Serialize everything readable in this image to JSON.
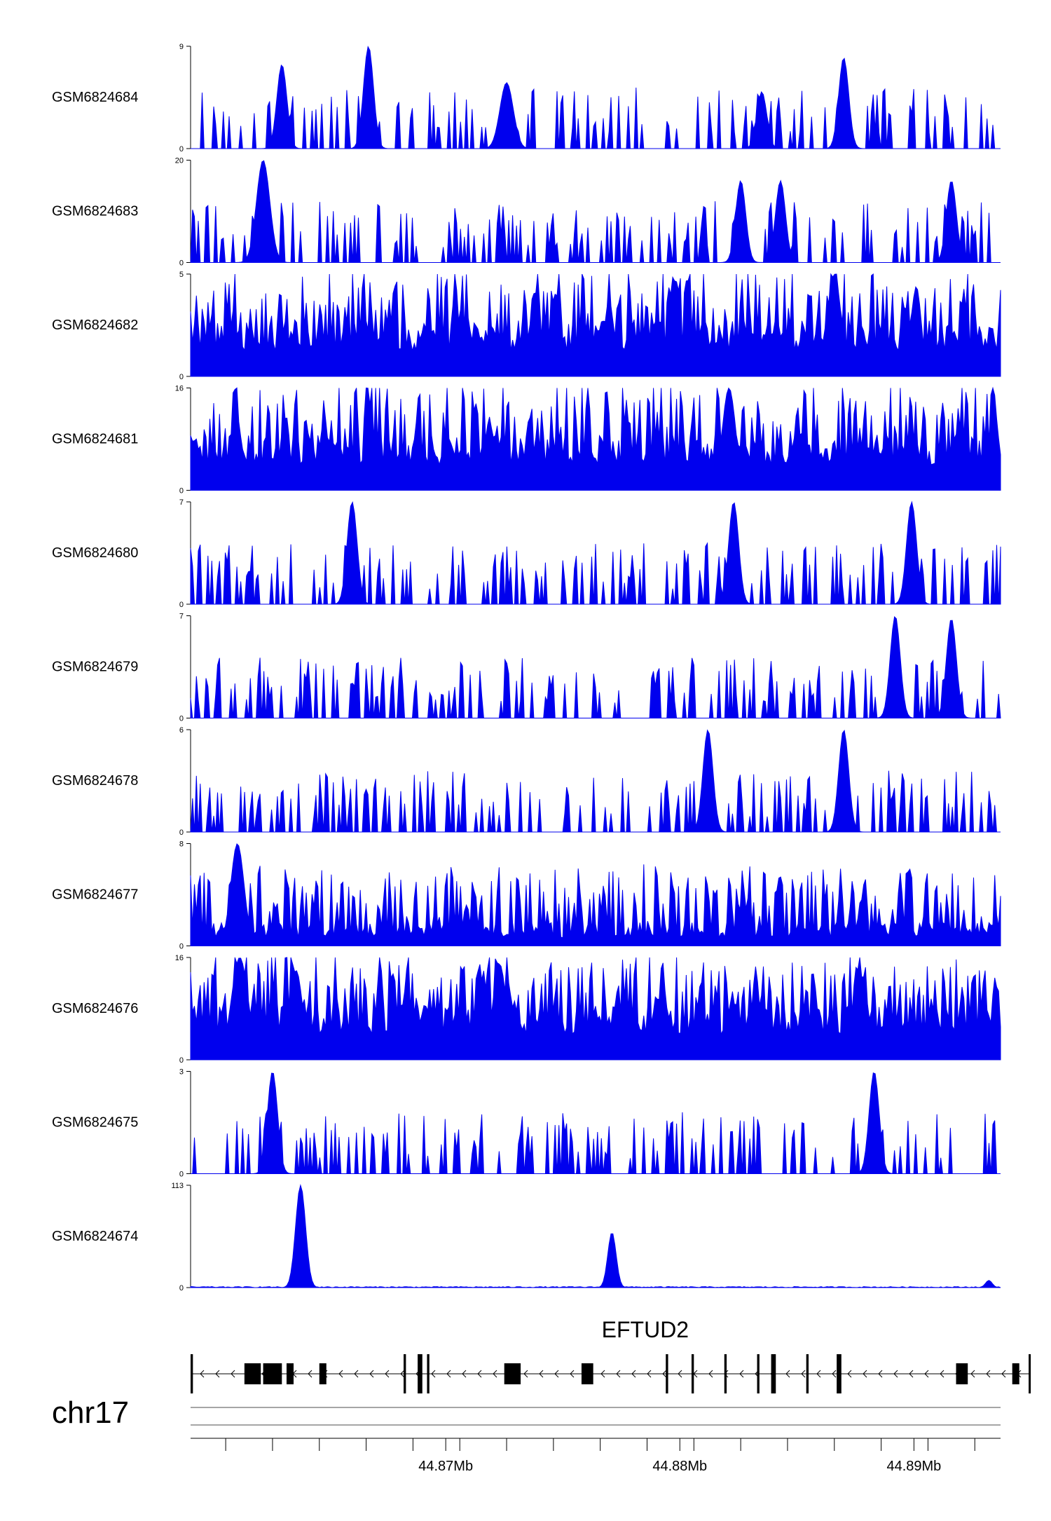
{
  "chart_data": {
    "type": "area",
    "chromosome": "chr17",
    "gene": {
      "name": "EFTUD2",
      "strand": "-",
      "exons": [
        [
          44.8591,
          44.8592
        ],
        [
          44.8614,
          44.8621
        ],
        [
          44.8622,
          44.863
        ],
        [
          44.8632,
          44.8635
        ],
        [
          44.8646,
          44.8649
        ],
        [
          44.8682,
          44.8683
        ],
        [
          44.8688,
          44.869
        ],
        [
          44.8692,
          44.8693
        ],
        [
          44.8725,
          44.8732
        ],
        [
          44.8758,
          44.8763
        ],
        [
          44.8794,
          44.8795
        ],
        [
          44.8805,
          44.8806
        ],
        [
          44.8819,
          44.882
        ],
        [
          44.8833,
          44.8834
        ],
        [
          44.8839,
          44.8841
        ],
        [
          44.8854,
          44.8855
        ],
        [
          44.8867,
          44.8869
        ],
        [
          44.8918,
          44.8923
        ],
        [
          44.8942,
          44.8945
        ],
        [
          44.8949,
          44.89495
        ]
      ]
    },
    "xlim": [
      44.8591,
      44.8937
    ],
    "x_ticks": [
      44.87,
      44.88,
      44.89
    ],
    "x_tick_labels": [
      "44.87Mb",
      "44.88Mb",
      "44.89Mb"
    ],
    "x_minor_ticks": [
      44.8606,
      44.8626,
      44.8646,
      44.8666,
      44.8686,
      44.8706,
      44.8726,
      44.8746,
      44.8766,
      44.8786,
      44.8806,
      44.8826,
      44.8846,
      44.8866,
      44.8886,
      44.8906,
      44.8926
    ],
    "tracks": [
      {
        "name": "GSM6824684",
        "ylim": [
          0,
          9
        ],
        "ymax_label": "9",
        "ymin_label": "0",
        "peaks": [
          [
            44.8667,
            9.0,
            0.0003
          ],
          [
            44.863,
            7.4,
            0.0003
          ],
          [
            44.8726,
            5.8,
            0.0004
          ],
          [
            44.887,
            8.0,
            0.0003
          ],
          [
            44.8835,
            5.0,
            0.0003
          ]
        ],
        "profile": "sparse"
      },
      {
        "name": "GSM6824683",
        "ylim": [
          0,
          20
        ],
        "ymax_label": "20",
        "ymin_label": "0",
        "peaks": [
          [
            44.8622,
            20.0,
            0.0004
          ],
          [
            44.8826,
            16.0,
            0.0003
          ],
          [
            44.8843,
            16.0,
            0.0003
          ],
          [
            44.8916,
            16.0,
            0.0003
          ]
        ],
        "profile": "sparse"
      },
      {
        "name": "GSM6824682",
        "ylim": [
          0,
          5
        ],
        "ymax_label": "5",
        "ymin_label": "0",
        "peaks": [
          [
            44.8866,
            5.0,
            0.0004
          ],
          [
            44.8901,
            4.4,
            0.0003
          ]
        ],
        "profile": "dense"
      },
      {
        "name": "GSM6824681",
        "ylim": [
          0,
          16
        ],
        "ymax_label": "16",
        "ymin_label": "0",
        "peaks": [
          [
            44.8821,
            16.0,
            0.0004
          ]
        ],
        "profile": "dense"
      },
      {
        "name": "GSM6824680",
        "ylim": [
          0,
          7
        ],
        "ymax_label": "7",
        "ymin_label": "0",
        "peaks": [
          [
            44.866,
            7.0,
            0.0003
          ],
          [
            44.8823,
            7.0,
            0.0003
          ],
          [
            44.8899,
            7.0,
            0.0003
          ]
        ],
        "profile": "sparse"
      },
      {
        "name": "GSM6824679",
        "ylim": [
          0,
          7
        ],
        "ymax_label": "7",
        "ymin_label": "0",
        "peaks": [
          [
            44.8892,
            7.0,
            0.0003
          ],
          [
            44.8916,
            6.8,
            0.0003
          ]
        ],
        "profile": "sparse"
      },
      {
        "name": "GSM6824678",
        "ylim": [
          0,
          6
        ],
        "ymax_label": "6",
        "ymin_label": "0",
        "peaks": [
          [
            44.8812,
            6.0,
            0.0003
          ],
          [
            44.887,
            6.0,
            0.0003
          ]
        ],
        "profile": "sparse"
      },
      {
        "name": "GSM6824677",
        "ylim": [
          0,
          8
        ],
        "ymax_label": "8",
        "ymin_label": "0",
        "peaks": [
          [
            44.8611,
            8.0,
            0.0004
          ]
        ],
        "profile": "medium"
      },
      {
        "name": "GSM6824676",
        "ylim": [
          0,
          16
        ],
        "ymax_label": "16",
        "ymin_label": "0",
        "peaks": [
          [
            44.8612,
            16.0,
            0.0005
          ],
          [
            44.8636,
            14.0,
            0.0004
          ],
          [
            44.8723,
            15.0,
            0.0004
          ]
        ],
        "profile": "dense"
      },
      {
        "name": "GSM6824675",
        "ylim": [
          0,
          3
        ],
        "ymax_label": "3",
        "ymin_label": "0",
        "peaks": [
          [
            44.8626,
            3.0,
            0.0003
          ],
          [
            44.8883,
            3.0,
            0.0003
          ]
        ],
        "profile": "sparse"
      },
      {
        "name": "GSM6824674",
        "ylim": [
          0,
          113
        ],
        "ymax_label": "113",
        "ymin_label": "0",
        "peaks": [
          [
            44.8638,
            113.0,
            0.0003
          ],
          [
            44.8771,
            61.0,
            0.00025
          ],
          [
            44.8932,
            8.0,
            0.0002
          ]
        ],
        "profile": "flat"
      }
    ]
  }
}
